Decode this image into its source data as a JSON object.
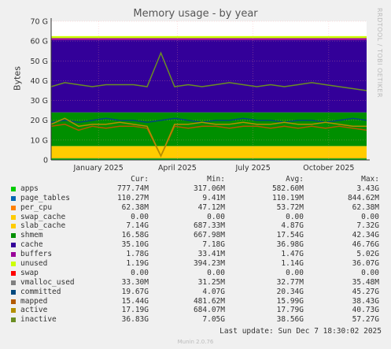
{
  "chart_data": {
    "type": "area",
    "title": "Memory usage - by year",
    "side_label": "RRDTOOL / TOBI OETIKER",
    "ylabel": "Bytes",
    "ylim": [
      0,
      70
    ],
    "yticks": [
      "0",
      "10 G",
      "20 G",
      "30 G",
      "40 G",
      "50 G",
      "60 G",
      "70 G"
    ],
    "ytick_values": [
      0,
      10,
      20,
      30,
      40,
      50,
      60,
      70
    ],
    "xticks": [
      "January 2025",
      "April 2025",
      "July 2025",
      "October 2025"
    ],
    "xtick_positions": [
      0.15,
      0.4,
      0.64,
      0.88
    ],
    "grid": true,
    "stack_bands": [
      {
        "name": "apps",
        "color": "#00cc00",
        "top": 0.8
      },
      {
        "name": "page_tables",
        "color": "#0066b3",
        "top": 0.9
      },
      {
        "name": "per_cpu",
        "color": "#ff8000",
        "top": 0.95
      },
      {
        "name": "slab_cache",
        "color": "#ffcc00",
        "top": 7.0
      },
      {
        "name": "shmem",
        "color": "#008f00",
        "top": 24.0
      },
      {
        "name": "cache",
        "color": "#330099",
        "top": 60.5
      },
      {
        "name": "buffers",
        "color": "#990099",
        "top": 61.5
      },
      {
        "name": "unused",
        "color": "#ccff00",
        "top": 62.5
      }
    ],
    "lines": [
      {
        "name": "committed",
        "color": "#00487d",
        "values": [
          19,
          20,
          19,
          20,
          21,
          20,
          20,
          19,
          20,
          21,
          20,
          19,
          20,
          20,
          21,
          20,
          20,
          19,
          20,
          20,
          19,
          20,
          21,
          20
        ]
      },
      {
        "name": "mapped",
        "color": "#b35a00",
        "values": [
          17,
          18,
          15,
          17,
          16,
          17,
          17,
          16,
          2,
          17,
          16,
          17,
          17,
          16,
          17,
          17,
          16,
          17,
          16,
          17,
          16,
          17,
          16,
          15
        ]
      },
      {
        "name": "active",
        "color": "#b38f00",
        "values": [
          18,
          21,
          17,
          18,
          18,
          19,
          18,
          17,
          2,
          18,
          18,
          19,
          18,
          18,
          19,
          18,
          18,
          19,
          18,
          18,
          19,
          18,
          17,
          17
        ]
      },
      {
        "name": "inactive",
        "color": "#6b8e23",
        "values": [
          37,
          39,
          38,
          37,
          38,
          38,
          38,
          37,
          54,
          37,
          38,
          37,
          38,
          39,
          38,
          37,
          38,
          37,
          38,
          39,
          38,
          37,
          36,
          35
        ]
      }
    ],
    "series_stats": [
      {
        "name": "apps",
        "color": "#00cc00",
        "cur": "777.74M",
        "min": "317.06M",
        "avg": "582.60M",
        "max": "3.43G"
      },
      {
        "name": "page_tables",
        "color": "#0066b3",
        "cur": "110.27M",
        "min": "9.41M",
        "avg": "110.19M",
        "max": "844.62M"
      },
      {
        "name": "per_cpu",
        "color": "#ff8000",
        "cur": "62.38M",
        "min": "47.12M",
        "avg": "53.72M",
        "max": "62.38M"
      },
      {
        "name": "swap_cache",
        "color": "#ffcc00",
        "cur": "0.00",
        "min": "0.00",
        "avg": "0.00",
        "max": "0.00"
      },
      {
        "name": "slab_cache",
        "color": "#ffcc00",
        "cur": "7.14G",
        "min": "687.33M",
        "avg": "4.87G",
        "max": "7.32G"
      },
      {
        "name": "shmem",
        "color": "#008f00",
        "cur": "16.58G",
        "min": "667.98M",
        "avg": "17.54G",
        "max": "42.34G"
      },
      {
        "name": "cache",
        "color": "#330099",
        "cur": "35.10G",
        "min": "7.18G",
        "avg": "36.98G",
        "max": "46.76G"
      },
      {
        "name": "buffers",
        "color": "#990099",
        "cur": "1.78G",
        "min": "33.41M",
        "avg": "1.47G",
        "max": "5.02G"
      },
      {
        "name": "unused",
        "color": "#ccff00",
        "cur": "1.19G",
        "min": "394.23M",
        "avg": "1.14G",
        "max": "36.07G"
      },
      {
        "name": "swap",
        "color": "#ff0000",
        "cur": "0.00",
        "min": "0.00",
        "avg": "0.00",
        "max": "0.00"
      },
      {
        "name": "vmalloc_used",
        "color": "#808080",
        "cur": "33.30M",
        "min": "31.25M",
        "avg": "32.77M",
        "max": "35.48M"
      },
      {
        "name": "committed",
        "color": "#00487d",
        "cur": "19.67G",
        "min": "4.07G",
        "avg": "20.34G",
        "max": "45.27G"
      },
      {
        "name": "mapped",
        "color": "#b35a00",
        "cur": "15.44G",
        "min": "481.62M",
        "avg": "15.99G",
        "max": "38.43G"
      },
      {
        "name": "active",
        "color": "#b38f00",
        "cur": "17.19G",
        "min": "684.07M",
        "avg": "17.79G",
        "max": "40.73G"
      },
      {
        "name": "inactive",
        "color": "#6b8e23",
        "cur": "36.83G",
        "min": "7.05G",
        "avg": "38.56G",
        "max": "57.27G"
      }
    ],
    "column_headers": {
      "cur": "Cur:",
      "min": "Min:",
      "avg": "Avg:",
      "max": "Max:"
    }
  },
  "last_update": "Last update: Sun Dec  7 18:30:02 2025",
  "footer": "Munin 2.0.76"
}
